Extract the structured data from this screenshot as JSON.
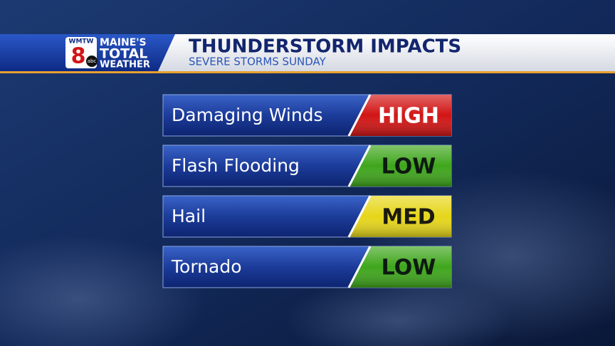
{
  "header": {
    "logo": {
      "callsign": "WMTW",
      "number": "8",
      "network": "abc",
      "line1": "MAINE'S",
      "line2": "TOTAL",
      "line3": "WEATHER"
    },
    "title": "THUNDERSTORM IMPACTS",
    "subtitle": "SEVERE STORMS SUNDAY"
  },
  "impacts": [
    {
      "hazard": "Damaging Winds",
      "level": "HIGH",
      "color": "#d21414",
      "text_color": "#ffffff"
    },
    {
      "hazard": "Flash Flooding",
      "level": "LOW",
      "color": "#3fa61c",
      "text_color": "#0d1a10"
    },
    {
      "hazard": "Hail",
      "level": "MED",
      "color": "#e6d61a",
      "text_color": "#1a1a10"
    },
    {
      "hazard": "Tornado",
      "level": "LOW",
      "color": "#3fa61c",
      "text_color": "#0d1a10"
    }
  ]
}
